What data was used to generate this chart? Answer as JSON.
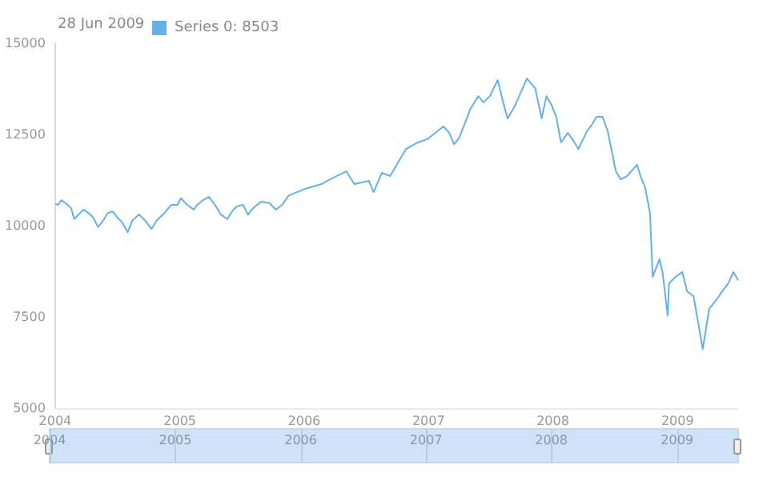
{
  "chart_data": {
    "type": "line",
    "annotations": [
      "28 Jun 2009"
    ],
    "legend": "top left",
    "grid": false,
    "marker": "none",
    "xlim": [
      "2004-01-01",
      "2009-06-28"
    ],
    "xticks": [
      "2004",
      "2005",
      "2006",
      "2007",
      "2008",
      "2009"
    ],
    "x2lim": [
      "2004-01-01",
      "2009-06-28"
    ],
    "x2ticks": [
      "2004",
      "2005",
      "2006",
      "2007",
      "2008",
      "2009"
    ],
    "ylim": [
      5000,
      15000
    ],
    "yticks": [
      5000,
      7500,
      10000,
      12500,
      15000
    ],
    "series": [
      {
        "name": "Series 0: 8503",
        "color": "#64b0e8",
        "x": [
          "2004-01-02",
          "2004-01-10",
          "2004-01-19",
          "2004-02-03",
          "2004-02-17",
          "2004-02-26",
          "2004-03-10",
          "2004-03-24",
          "2004-04-08",
          "2004-04-22",
          "2004-05-06",
          "2004-05-20",
          "2004-06-04",
          "2004-06-18",
          "2004-07-02",
          "2004-07-16",
          "2004-08-01",
          "2004-08-14",
          "2004-09-03",
          "2004-09-22",
          "2004-10-10",
          "2004-10-24",
          "2004-11-17",
          "2004-12-06",
          "2004-12-25",
          "2005-01-04",
          "2005-01-23",
          "2005-02-11",
          "2005-02-21",
          "2005-03-10",
          "2005-03-28",
          "2005-04-17",
          "2005-05-01",
          "2005-05-20",
          "2005-06-04",
          "2005-06-18",
          "2005-07-06",
          "2005-07-20",
          "2005-08-04",
          "2005-08-28",
          "2005-09-21",
          "2005-10-10",
          "2005-10-28",
          "2005-11-17",
          "2006-01-04",
          "2006-02-20",
          "2006-03-18",
          "2006-05-05",
          "2006-05-28",
          "2006-07-10",
          "2006-07-24",
          "2006-08-17",
          "2006-09-10",
          "2006-10-27",
          "2006-11-30",
          "2006-12-28",
          "2007-02-14",
          "2007-03-03",
          "2007-03-17",
          "2007-04-01",
          "2007-05-04",
          "2007-05-27",
          "2007-06-11",
          "2007-06-30",
          "2007-07-23",
          "2007-08-07",
          "2007-08-21",
          "2007-09-10",
          "2007-09-24",
          "2007-10-17",
          "2007-11-10",
          "2007-11-29",
          "2007-12-13",
          "2007-12-27",
          "2008-01-11",
          "2008-01-25",
          "2008-02-14",
          "2008-03-02",
          "2008-03-16",
          "2008-04-10",
          "2008-04-24",
          "2008-05-08",
          "2008-05-26",
          "2008-06-10",
          "2008-07-04",
          "2008-07-18",
          "2008-08-06",
          "2008-09-04",
          "2008-09-14",
          "2008-09-28",
          "2008-10-12",
          "2008-10-20",
          "2008-11-09",
          "2008-11-18",
          "2008-12-03",
          "2008-12-07",
          "2008-12-26",
          "2009-01-15",
          "2009-01-29",
          "2009-02-17",
          "2009-03-16",
          "2009-04-04",
          "2009-04-23",
          "2009-05-12",
          "2009-05-30",
          "2009-06-14",
          "2009-06-28"
        ],
        "values": [
          10600,
          10570,
          10700,
          10600,
          10480,
          10180,
          10310,
          10440,
          10350,
          10220,
          9960,
          10130,
          10350,
          10390,
          10220,
          10090,
          9820,
          10130,
          10310,
          10130,
          9910,
          10130,
          10350,
          10570,
          10570,
          10750,
          10570,
          10440,
          10570,
          10700,
          10790,
          10530,
          10310,
          10180,
          10400,
          10530,
          10570,
          10300,
          10480,
          10660,
          10620,
          10440,
          10570,
          10830,
          11010,
          11140,
          11270,
          11490,
          11140,
          11230,
          10920,
          11450,
          11360,
          12100,
          12280,
          12370,
          12720,
          12540,
          12230,
          12410,
          13200,
          13550,
          13380,
          13550,
          13990,
          13420,
          12940,
          13250,
          13550,
          14030,
          13770,
          12940,
          13550,
          13330,
          12980,
          12280,
          12540,
          12320,
          12100,
          12590,
          12760,
          12980,
          12980,
          12590,
          11490,
          11270,
          11360,
          11670,
          11360,
          11050,
          10350,
          8600,
          9080,
          8730,
          7540,
          8420,
          8600,
          8730,
          8200,
          8070,
          6620,
          7720,
          7940,
          8200,
          8420,
          8730,
          8503
        ]
      }
    ]
  }
}
